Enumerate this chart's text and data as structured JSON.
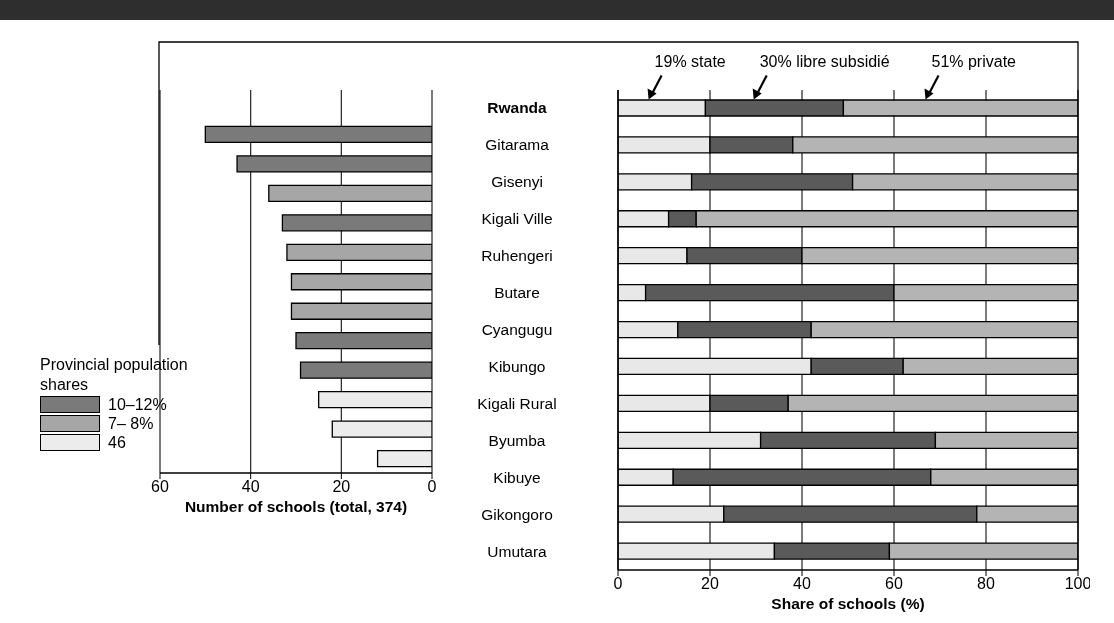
{
  "chart_data": [
    {
      "type": "bar",
      "orientation": "horizontal",
      "stacked": true,
      "categories": [
        null,
        null,
        null,
        null,
        null,
        null,
        null,
        null,
        null,
        null,
        null,
        null,
        null
      ],
      "xlabel": "Number of schools (total, 374)",
      "xlim": [
        60,
        0
      ],
      "xticks": [
        60,
        40,
        20,
        0
      ],
      "grid": "x",
      "tick_labels": "x",
      "legend": "left",
      "legend_title": "Provincial population shares",
      "series": [
        {
          "name": "10–12%",
          "color": "#7a7a7a",
          "values": [
            null,
            50,
            43,
            null,
            33,
            null,
            null,
            null,
            30,
            29,
            null,
            null,
            null
          ]
        },
        {
          "name": "7– 8%",
          "color": "#a6a6a6",
          "values": [
            null,
            null,
            null,
            36,
            null,
            32,
            31,
            31,
            null,
            null,
            null,
            null,
            null
          ]
        },
        {
          "name": "46",
          "color": "#ececec",
          "values": [
            null,
            null,
            null,
            null,
            null,
            null,
            null,
            null,
            null,
            null,
            25,
            22,
            12
          ]
        }
      ]
    },
    {
      "type": "bar",
      "orientation": "horizontal",
      "stacked": true,
      "categories": [
        "Rwanda",
        "Gitarama",
        "Gisenyi",
        "Kigali Ville",
        "Ruhengeri",
        "Butare",
        "Cyangugu",
        "Kibungo",
        "Kigali Rural",
        "Byumba",
        "Kibuye",
        "Gikongoro",
        "Umutara"
      ],
      "xlabel": "Share of schools (%)",
      "xlim": [
        0,
        100
      ],
      "xticks": [
        0,
        20,
        40,
        60,
        80,
        100
      ],
      "grid": "x",
      "series": [
        {
          "color": "#e8e8e8",
          "values": [
            19,
            20,
            16,
            11,
            15,
            6,
            13,
            42,
            20,
            31,
            12,
            23,
            34
          ]
        },
        {
          "color": "#5a5a5a",
          "values": [
            30,
            18,
            35,
            6,
            25,
            54,
            29,
            20,
            17,
            38,
            56,
            55,
            25
          ]
        },
        {
          "color": "#b4b4b4",
          "values": [
            51,
            62,
            49,
            83,
            60,
            40,
            58,
            38,
            63,
            31,
            32,
            22,
            41
          ]
        }
      ],
      "annotations": [
        "19% state",
        "30% libre subsidié",
        "51% private"
      ]
    }
  ]
}
